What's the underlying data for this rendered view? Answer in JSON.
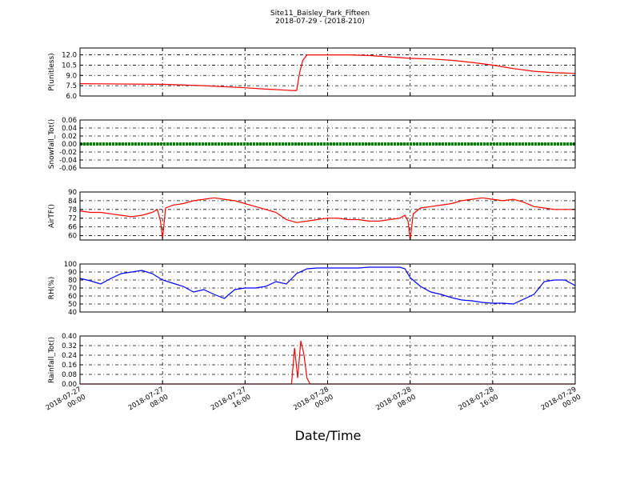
{
  "title": "Site11_Baisley_Park_Fifteen",
  "subtitle": "2018-07-29 - (2018-210)",
  "xlabel": "Date/Time",
  "xticks": [
    "2018-07-27\n00:00",
    "2018-07-27\n08:00",
    "2018-07-27\n16:00",
    "2018-07-28\n00:00",
    "2018-07-28\n08:00",
    "2018-07-28\n16:00",
    "2018-07-29\n00:00"
  ],
  "colors": {
    "red": "#ff0000",
    "blue": "#0000ff",
    "green": "#008000"
  },
  "chart_data": [
    {
      "type": "line",
      "ylabel": "P(unitless)",
      "ylim": [
        6.0,
        13.0
      ],
      "yticks": [
        "6.0",
        "7.5",
        "9.0",
        "10.5",
        "12.0"
      ],
      "ytick_values": [
        6.0,
        7.5,
        9.0,
        10.5,
        12.0
      ],
      "grid": true,
      "series": [
        {
          "color": "#ff0000",
          "x": [
            0,
            8,
            12,
            16,
            18,
            20,
            20.5,
            21,
            21.3,
            21.6,
            22,
            23,
            26,
            28,
            30,
            32,
            34,
            36,
            38,
            40,
            42,
            44,
            46,
            48
          ],
          "y": [
            7.8,
            7.7,
            7.5,
            7.2,
            7.0,
            6.85,
            6.8,
            6.8,
            9.5,
            11.2,
            12.0,
            12.0,
            12.0,
            11.9,
            11.7,
            11.5,
            11.4,
            11.2,
            10.9,
            10.5,
            10.0,
            9.6,
            9.4,
            9.3
          ]
        }
      ]
    },
    {
      "type": "line",
      "ylabel": "Snowfall_Tot()",
      "ylim": [
        -0.06,
        0.06
      ],
      "yticks": [
        "-0.06",
        "-0.04",
        "-0.02",
        "0.00",
        "0.02",
        "0.04",
        "0.06"
      ],
      "ytick_values": [
        -0.06,
        -0.04,
        -0.02,
        0.0,
        0.02,
        0.04,
        0.06
      ],
      "grid": true,
      "series": [
        {
          "color": "#008000",
          "x": [
            0,
            48
          ],
          "y": [
            0,
            0
          ]
        }
      ]
    },
    {
      "type": "line",
      "ylabel": "AirTF()",
      "ylim": [
        57,
        90
      ],
      "yticks": [
        "60",
        "66",
        "72",
        "78",
        "84",
        "90"
      ],
      "ytick_values": [
        60,
        66,
        72,
        78,
        84,
        90
      ],
      "grid": true,
      "series": [
        {
          "color": "#ff0000",
          "x": [
            0,
            1,
            2,
            3,
            4,
            5,
            6,
            7,
            7.5,
            7.8,
            8.0,
            8.3,
            9,
            10,
            11,
            12,
            13,
            14,
            15,
            16,
            17,
            18,
            19,
            20,
            21,
            22,
            23,
            24,
            25,
            26,
            27,
            28,
            29,
            30,
            31,
            31.5,
            31.8,
            32.0,
            32.3,
            33,
            34,
            35,
            36,
            37,
            38,
            39,
            40,
            41,
            42,
            43,
            44,
            45,
            46,
            47,
            48
          ],
          "y": [
            77,
            76,
            76,
            75,
            74,
            73,
            74,
            76,
            78,
            70,
            58,
            79,
            81,
            82,
            84,
            85,
            86,
            85,
            84,
            82,
            80,
            78,
            76,
            71,
            69,
            70,
            71,
            72,
            72,
            71,
            71,
            70,
            70,
            71,
            72,
            74,
            70,
            57,
            75,
            79,
            80,
            81,
            82,
            84,
            85,
            86,
            85,
            84,
            85,
            83,
            80,
            79,
            78,
            78,
            78
          ]
        }
      ]
    },
    {
      "type": "line",
      "ylabel": "RH(%)",
      "ylim": [
        40,
        100
      ],
      "yticks": [
        "40",
        "50",
        "60",
        "70",
        "80",
        "90",
        "100"
      ],
      "ytick_values": [
        40,
        50,
        60,
        70,
        80,
        90,
        100
      ],
      "grid": true,
      "series": [
        {
          "color": "#0000ff",
          "x": [
            0,
            1,
            2,
            3,
            4,
            5,
            6,
            7,
            8,
            9,
            10,
            11,
            12,
            13,
            14,
            15,
            16,
            17,
            18,
            19,
            20,
            21,
            22,
            23,
            24,
            25,
            26,
            27,
            28,
            29,
            30,
            31,
            31.5,
            32,
            33,
            34,
            35,
            36,
            37,
            38,
            39,
            40,
            41,
            42,
            43,
            44,
            45,
            46,
            47,
            48
          ],
          "y": [
            82,
            79,
            75,
            82,
            88,
            90,
            92,
            88,
            80,
            76,
            72,
            65,
            68,
            62,
            57,
            68,
            70,
            70,
            72,
            78,
            75,
            88,
            94,
            95,
            95,
            95,
            95,
            95,
            96,
            96,
            96,
            96,
            94,
            83,
            72,
            65,
            62,
            58,
            55,
            54,
            52,
            51,
            51,
            50,
            56,
            62,
            78,
            80,
            80,
            73
          ]
        }
      ]
    },
    {
      "type": "line",
      "ylabel": "Rainfall_Tot()",
      "ylim": [
        0.0,
        0.4
      ],
      "yticks": [
        "0.00",
        "0.08",
        "0.16",
        "0.24",
        "0.32",
        "0.40"
      ],
      "ytick_values": [
        0.0,
        0.08,
        0.16,
        0.24,
        0.32,
        0.4
      ],
      "grid": true,
      "series": [
        {
          "color": "#ff0000",
          "x": [
            0,
            20,
            20.5,
            20.8,
            21.1,
            21.4,
            21.7,
            22.0,
            22.3,
            48
          ],
          "y": [
            0,
            0,
            0,
            0.3,
            0.05,
            0.36,
            0.25,
            0.05,
            0,
            0
          ]
        }
      ]
    }
  ]
}
